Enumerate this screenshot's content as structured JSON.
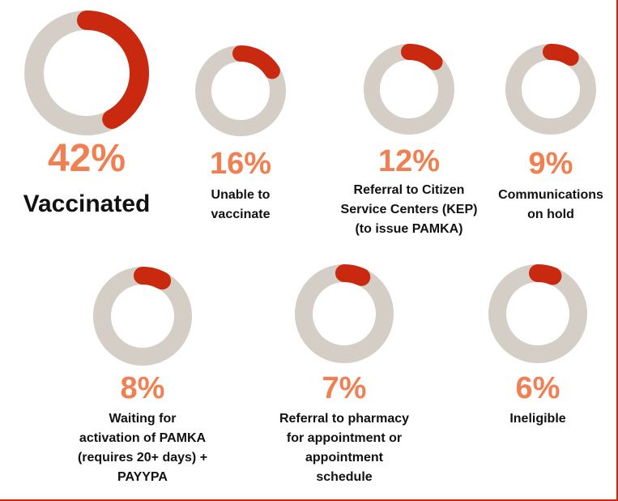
{
  "chart_data": [
    {
      "type": "donut",
      "categories": [
        "Vaccinated"
      ],
      "values": [
        42
      ],
      "value_labels": [
        "42%"
      ],
      "ylim": [
        0,
        100
      ],
      "color": "#c8290f",
      "track_color": "#d5cec6"
    },
    {
      "type": "donut",
      "categories": [
        "Unable to\nvaccinate"
      ],
      "values": [
        16
      ],
      "value_labels": [
        "16%"
      ],
      "ylim": [
        0,
        100
      ],
      "color": "#c8290f",
      "track_color": "#d5cec6"
    },
    {
      "type": "donut",
      "categories": [
        "Referral to Citizen\nService Centers (KEP)\n(to issue PAMKA)"
      ],
      "values": [
        12
      ],
      "value_labels": [
        "12%"
      ],
      "ylim": [
        0,
        100
      ],
      "color": "#c8290f",
      "track_color": "#d5cec6"
    },
    {
      "type": "donut",
      "categories": [
        "Communications\non hold"
      ],
      "values": [
        9
      ],
      "value_labels": [
        "9%"
      ],
      "ylim": [
        0,
        100
      ],
      "color": "#c8290f",
      "track_color": "#d5cec6"
    },
    {
      "type": "donut",
      "categories": [
        "Waiting for\nactivation of PAMKA\n(requires 20+ days) +\nPAYYPA"
      ],
      "values": [
        8
      ],
      "value_labels": [
        "8%"
      ],
      "ylim": [
        0,
        100
      ],
      "color": "#c8290f",
      "track_color": "#d5cec6"
    },
    {
      "type": "donut",
      "categories": [
        "Referral to pharmacy\nfor appointment or\nappointment\nschedule"
      ],
      "values": [
        7
      ],
      "value_labels": [
        "7%"
      ],
      "ylim": [
        0,
        100
      ],
      "color": "#c8290f",
      "track_color": "#d5cec6"
    },
    {
      "type": "donut",
      "categories": [
        "Ineligible"
      ],
      "values": [
        6
      ],
      "value_labels": [
        "6%"
      ],
      "ylim": [
        0,
        100
      ],
      "color": "#c8290f",
      "track_color": "#d5cec6"
    }
  ]
}
